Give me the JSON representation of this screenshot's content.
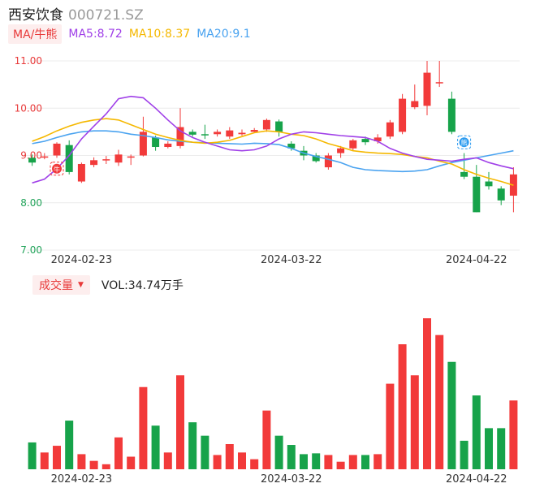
{
  "header": {
    "name": "西安饮食",
    "code": "000721.SZ"
  },
  "ma_legend": {
    "badge": "MA/牛熊",
    "items": [
      {
        "text": "MA5:8.72",
        "color": "#a040e8"
      },
      {
        "text": "MA10:8.37",
        "color": "#f5b800"
      },
      {
        "text": "MA20:9.1",
        "color": "#4aa3f0"
      }
    ]
  },
  "volume_legend": {
    "badge": "成交量",
    "caret": "▼",
    "text": "VOL:34.74万手"
  },
  "colors": {
    "up": "#f23a3a",
    "down": "#17a34a",
    "grid": "#ececec",
    "axis_label": "#e83a3a"
  },
  "chart_data": [
    {
      "type": "candlestick",
      "y_ticks": [
        "11.00",
        "10.00",
        "9.00",
        "8.00",
        "7.00"
      ],
      "ylim": [
        7.0,
        11.0
      ],
      "x_tick_labels": [
        {
          "label": "2024-02-23",
          "index": 4
        },
        {
          "label": "2024-03-22",
          "index": 21
        },
        {
          "label": "2024-04-22",
          "index": 36
        }
      ],
      "candles": [
        {
          "o": 8.95,
          "c": 8.85,
          "h": 9.02,
          "l": 8.78
        },
        {
          "o": 8.98,
          "c": 8.98,
          "h": 9.05,
          "l": 8.92
        },
        {
          "o": 9.0,
          "c": 9.25,
          "h": 9.28,
          "l": 8.95
        },
        {
          "o": 9.22,
          "c": 8.65,
          "h": 9.32,
          "l": 8.6
        },
        {
          "o": 8.45,
          "c": 8.82,
          "h": 8.85,
          "l": 8.42
        },
        {
          "o": 8.8,
          "c": 8.9,
          "h": 8.96,
          "l": 8.75
        },
        {
          "o": 8.92,
          "c": 8.92,
          "h": 8.99,
          "l": 8.82
        },
        {
          "o": 8.85,
          "c": 9.02,
          "h": 9.12,
          "l": 8.78
        },
        {
          "o": 8.96,
          "c": 8.98,
          "h": 9.02,
          "l": 8.8
        },
        {
          "o": 9.0,
          "c": 9.5,
          "h": 9.82,
          "l": 8.98
        },
        {
          "o": 9.38,
          "c": 9.18,
          "h": 9.42,
          "l": 9.1
        },
        {
          "o": 9.18,
          "c": 9.25,
          "h": 9.3,
          "l": 9.15
        },
        {
          "o": 9.2,
          "c": 9.6,
          "h": 10.0,
          "l": 9.15
        },
        {
          "o": 9.5,
          "c": 9.44,
          "h": 9.55,
          "l": 9.4
        },
        {
          "o": 9.45,
          "c": 9.44,
          "h": 9.65,
          "l": 9.35
        },
        {
          "o": 9.45,
          "c": 9.5,
          "h": 9.55,
          "l": 9.4
        },
        {
          "o": 9.4,
          "c": 9.53,
          "h": 9.6,
          "l": 9.35
        },
        {
          "o": 9.45,
          "c": 9.48,
          "h": 9.55,
          "l": 9.42
        },
        {
          "o": 9.5,
          "c": 9.54,
          "h": 9.58,
          "l": 9.48
        },
        {
          "o": 9.55,
          "c": 9.75,
          "h": 9.78,
          "l": 9.5
        },
        {
          "o": 9.72,
          "c": 9.5,
          "h": 9.76,
          "l": 9.4
        },
        {
          "o": 9.25,
          "c": 9.15,
          "h": 9.3,
          "l": 9.1
        },
        {
          "o": 9.1,
          "c": 9.0,
          "h": 9.2,
          "l": 8.9
        },
        {
          "o": 9.0,
          "c": 8.88,
          "h": 9.05,
          "l": 8.85
        },
        {
          "o": 8.75,
          "c": 9.0,
          "h": 9.05,
          "l": 8.7
        },
        {
          "o": 9.05,
          "c": 9.15,
          "h": 9.2,
          "l": 8.95
        },
        {
          "o": 9.15,
          "c": 9.32,
          "h": 9.35,
          "l": 9.1
        },
        {
          "o": 9.35,
          "c": 9.28,
          "h": 9.4,
          "l": 9.22
        },
        {
          "o": 9.3,
          "c": 9.38,
          "h": 9.45,
          "l": 9.25
        },
        {
          "o": 9.4,
          "c": 9.7,
          "h": 9.75,
          "l": 9.35
        },
        {
          "o": 9.5,
          "c": 10.2,
          "h": 10.3,
          "l": 9.45
        },
        {
          "o": 10.02,
          "c": 10.15,
          "h": 10.5,
          "l": 9.98
        },
        {
          "o": 10.05,
          "c": 10.75,
          "h": 11.0,
          "l": 9.85
        },
        {
          "o": 10.55,
          "c": 10.55,
          "h": 11.0,
          "l": 10.45
        },
        {
          "o": 10.2,
          "c": 9.5,
          "h": 10.35,
          "l": 9.45
        },
        {
          "o": 8.65,
          "c": 8.55,
          "h": 9.05,
          "l": 8.5
        },
        {
          "o": 8.55,
          "c": 7.8,
          "h": 8.8,
          "l": 7.8
        },
        {
          "o": 8.45,
          "c": 8.35,
          "h": 8.65,
          "l": 8.28
        },
        {
          "o": 8.3,
          "c": 8.05,
          "h": 8.35,
          "l": 7.95
        },
        {
          "o": 8.15,
          "c": 8.6,
          "h": 8.75,
          "l": 7.8
        }
      ],
      "ma5": [
        8.42,
        8.5,
        8.72,
        9.0,
        9.35,
        9.62,
        9.88,
        10.2,
        10.25,
        10.22,
        10.0,
        9.75,
        9.52,
        9.38,
        9.28,
        9.2,
        9.12,
        9.1,
        9.12,
        9.2,
        9.35,
        9.45,
        9.5,
        9.48,
        9.45,
        9.42,
        9.4,
        9.38,
        9.3,
        9.15,
        9.05,
        8.98,
        8.92,
        8.9,
        8.88,
        8.92,
        8.95,
        8.85,
        8.78,
        8.72
      ],
      "ma10": [
        9.3,
        9.4,
        9.52,
        9.62,
        9.7,
        9.75,
        9.78,
        9.75,
        9.65,
        9.55,
        9.45,
        9.38,
        9.32,
        9.28,
        9.26,
        9.28,
        9.32,
        9.4,
        9.48,
        9.52,
        9.5,
        9.45,
        9.42,
        9.35,
        9.25,
        9.18,
        9.1,
        9.07,
        9.05,
        9.04,
        9.02,
        8.98,
        8.95,
        8.88,
        8.82,
        8.7,
        8.6,
        8.52,
        8.45,
        8.37
      ],
      "ma20": [
        9.25,
        9.3,
        9.38,
        9.45,
        9.5,
        9.52,
        9.52,
        9.5,
        9.45,
        9.42,
        9.38,
        9.33,
        9.3,
        9.28,
        9.27,
        9.26,
        9.25,
        9.24,
        9.26,
        9.25,
        9.23,
        9.15,
        9.05,
        8.98,
        8.92,
        8.85,
        8.75,
        8.7,
        8.68,
        8.67,
        8.66,
        8.67,
        8.7,
        8.78,
        8.85,
        8.9,
        8.95,
        9.0,
        9.05,
        9.1
      ],
      "markers": [
        {
          "label": "牛",
          "index": 2,
          "value": 8.72,
          "color": "#f23a3a"
        },
        {
          "label": "熊",
          "index": 35,
          "value": 9.28,
          "color": "#2b9bf0"
        }
      ]
    },
    {
      "type": "bar",
      "title": "成交量",
      "volumes": [
        32,
        20,
        28,
        58,
        18,
        10,
        6,
        38,
        15,
        98,
        52,
        20,
        112,
        56,
        40,
        17,
        30,
        20,
        12,
        70,
        40,
        29,
        18,
        19,
        17,
        9,
        17,
        17,
        18,
        102,
        149,
        112,
        180,
        160,
        128,
        34,
        88,
        49,
        49,
        82
      ]
    }
  ]
}
